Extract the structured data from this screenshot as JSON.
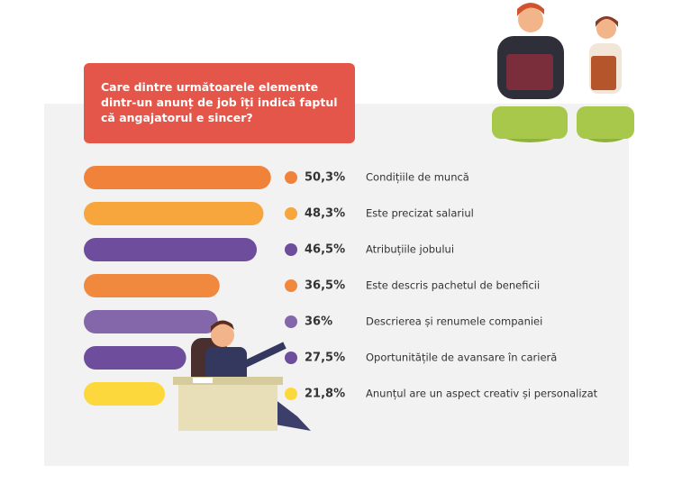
{
  "chart_data": {
    "type": "bar",
    "orientation": "horizontal",
    "title": "Care dintre următoarele elemente dintr-un anunț de job îți indică faptul că angajatorul e sincer?",
    "categories": [
      "Condițiile de muncă",
      "Este precizat salariul",
      "Atribuțiile jobului",
      "Este descris pachetul de beneficii",
      "Descrierea și renumele companiei",
      "Oportunitățile de avansare în carieră",
      "Anunțul are un aspect creativ și personalizat"
    ],
    "values": [
      50.3,
      48.3,
      46.5,
      36.5,
      36,
      27.5,
      21.8
    ],
    "value_labels": [
      "50,3%",
      "48,3%",
      "46,5%",
      "36,5%",
      "36%",
      "27,5%",
      "21,8%"
    ],
    "colors": [
      "#f0823a",
      "#f7a63d",
      "#6d4d9c",
      "#f0883d",
      "#8467aa",
      "#6d4d9c",
      "#fdd83c"
    ],
    "xlim": [
      0,
      100
    ]
  }
}
